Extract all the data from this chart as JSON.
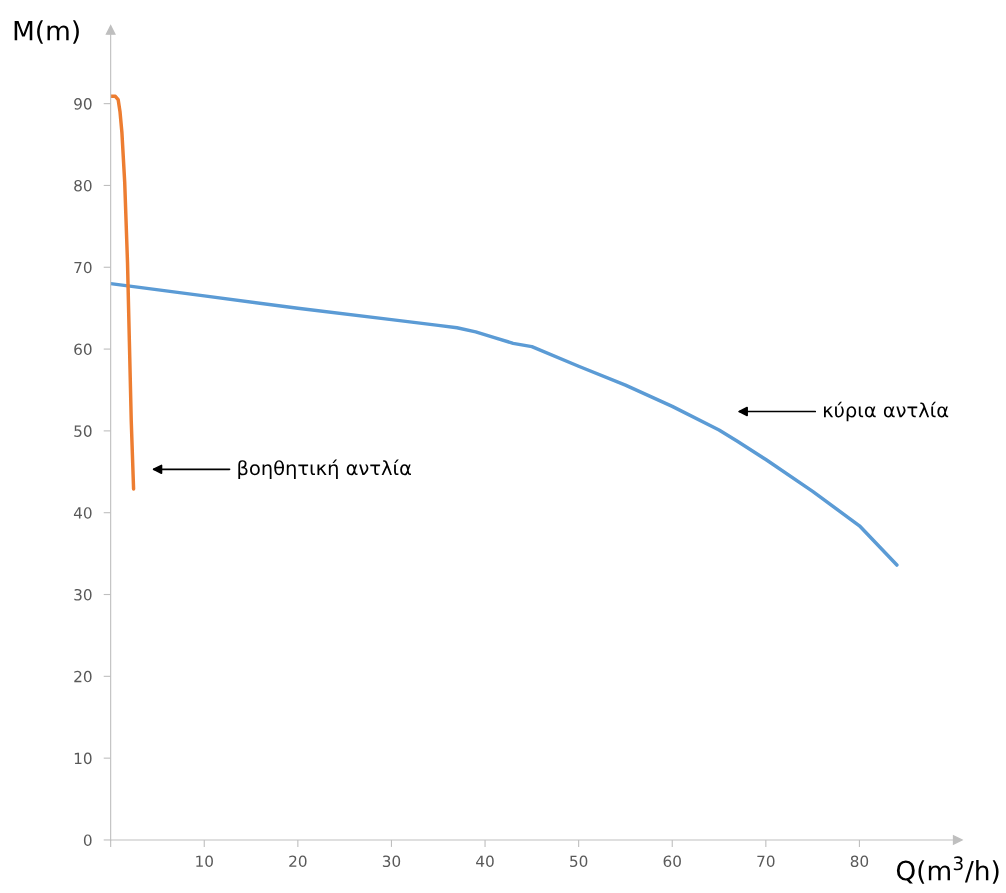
{
  "chart_data": {
    "type": "line",
    "xlabel": "Q(m$^{3}$/h)",
    "ylabel": "M(m)",
    "xlim": [
      0,
      90.5
    ],
    "ylim": [
      0,
      99
    ],
    "xticks": [
      {
        "value": 0,
        "label": null
      },
      10,
      20,
      30,
      40,
      50,
      60,
      70,
      80
    ],
    "yticks": [
      0,
      10,
      20,
      30,
      40,
      50,
      60,
      70,
      80,
      90
    ],
    "grid": false,
    "legend": false,
    "marker": "none",
    "line_style": "solid",
    "series": [
      {
        "color": "#5b9bd5",
        "x": [
          0,
          10,
          20,
          30,
          35,
          37,
          39,
          41,
          43,
          45,
          50,
          55,
          60,
          65,
          67,
          70,
          75,
          80,
          84
        ],
        "values": [
          68.0,
          66.5,
          65.0,
          63.6,
          62.9,
          62.6,
          62.1,
          61.4,
          60.7,
          60.3,
          57.9,
          55.6,
          53.0,
          50.1,
          48.7,
          46.5,
          42.6,
          38.4,
          33.6
        ]
      },
      {
        "color": "#ed7d31",
        "x": [
          0,
          0.5,
          0.8,
          1.0,
          1.2,
          1.5,
          1.8,
          2.0,
          2.2,
          2.45
        ],
        "values": [
          90.9,
          90.9,
          90.5,
          89.0,
          86.5,
          80.4,
          70.6,
          60.9,
          51.2,
          42.9
        ]
      }
    ],
    "annotations": [
      "βοηθητική αντλία",
      "κύρια αντλία"
    ]
  }
}
